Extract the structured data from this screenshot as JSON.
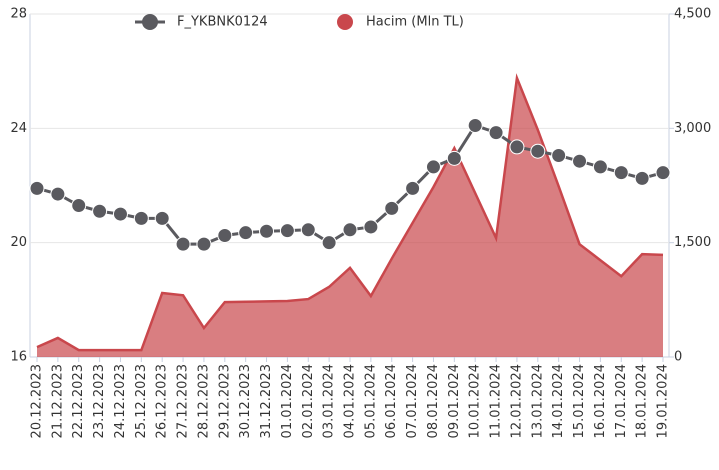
{
  "chart_data": {
    "type": "line-area",
    "categories": [
      "20.12.2023",
      "21.12.2023",
      "22.12.2023",
      "23.12.2023",
      "24.12.2023",
      "25.12.2023",
      "26.12.2023",
      "27.12.2023",
      "28.12.2023",
      "29.12.2023",
      "30.12.2023",
      "31.12.2023",
      "01.01.2024",
      "02.01.2024",
      "03.01.2024",
      "04.01.2024",
      "05.01.2024",
      "06.01.2024",
      "07.01.2024",
      "08.01.2024",
      "09.01.2024",
      "10.01.2024",
      "11.01.2024",
      "12.01.2024",
      "13.01.2024",
      "14.01.2024",
      "15.01.2024",
      "16.01.2024",
      "17.01.2024",
      "18.01.2024",
      "19.01.2024"
    ],
    "series": [
      {
        "name": "F_YKBNK0124",
        "color": "#5a5a5f",
        "values": [
          21.9,
          21.7,
          21.3,
          21.1,
          21.0,
          20.85,
          20.85,
          19.95,
          19.95,
          20.25,
          20.35,
          20.4,
          20.42,
          20.45,
          20.0,
          20.45,
          20.55,
          21.2,
          21.9,
          22.65,
          22.95,
          24.1,
          23.85,
          23.35,
          23.2,
          23.05,
          22.85,
          22.65,
          22.45,
          22.25,
          22.45
        ]
      },
      {
        "name": "Hacim (Mln TL)",
        "color": "#c9474c",
        "axis": "y2",
        "values": [
          130,
          250,
          90,
          90,
          90,
          90,
          840,
          810,
          380,
          720,
          725,
          730,
          735,
          760,
          920,
          1170,
          800,
          1290,
          1760,
          2230,
          2740,
          2150,
          1560,
          3660,
          2980,
          2240,
          1480,
          1270,
          1060,
          1350,
          1340
        ]
      }
    ],
    "ylim": [
      16,
      28
    ],
    "yticks": [
      16,
      20,
      24,
      28
    ],
    "y2lim": [
      0,
      4500
    ],
    "y2ticks": [
      0,
      {
        "value": 1500,
        "label": "1,500"
      },
      {
        "value": 3000,
        "label": "3,000"
      },
      {
        "value": 4500,
        "label": "4,500"
      }
    ],
    "grid": true
  }
}
